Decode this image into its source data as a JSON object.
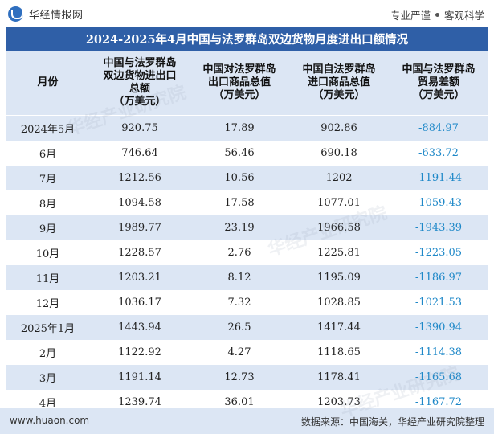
{
  "header": {
    "logo_text": "华经情报网",
    "slogan_left": "专业严谨",
    "slogan_right": "客观科学"
  },
  "title": "2024-2025年4月中国与法罗群岛双边货物月度进出口额情况",
  "columns": [
    "月份",
    "中国与法罗群岛\n双边货物进出口\n总额\n（万美元）",
    "中国对法罗群岛\n出口商品总值\n（万美元）",
    "中国自法罗群岛\n进口商品总值\n（万美元）",
    "中国与法罗群岛\n贸易差额\n（万美元）"
  ],
  "rows": [
    {
      "month": "2024年5月",
      "total": "920.75",
      "export": "17.89",
      "import": "902.86",
      "balance": "-884.97"
    },
    {
      "month": "6月",
      "total": "746.64",
      "export": "56.46",
      "import": "690.18",
      "balance": "-633.72"
    },
    {
      "month": "7月",
      "total": "1212.56",
      "export": "10.56",
      "import": "1202",
      "balance": "-1191.44"
    },
    {
      "month": "8月",
      "total": "1094.58",
      "export": "17.58",
      "import": "1077.01",
      "balance": "-1059.43"
    },
    {
      "month": "9月",
      "total": "1989.77",
      "export": "23.19",
      "import": "1966.58",
      "balance": "-1943.39"
    },
    {
      "month": "10月",
      "total": "1228.57",
      "export": "2.76",
      "import": "1225.81",
      "balance": "-1223.05"
    },
    {
      "month": "11月",
      "total": "1203.21",
      "export": "8.12",
      "import": "1195.09",
      "balance": "-1186.97"
    },
    {
      "month": "12月",
      "total": "1036.17",
      "export": "7.32",
      "import": "1028.85",
      "balance": "-1021.53"
    },
    {
      "month": "2025年1月",
      "total": "1443.94",
      "export": "26.5",
      "import": "1417.44",
      "balance": "-1390.94"
    },
    {
      "month": "2月",
      "total": "1122.92",
      "export": "4.27",
      "import": "1118.65",
      "balance": "-1114.38"
    },
    {
      "month": "3月",
      "total": "1191.14",
      "export": "12.73",
      "import": "1178.41",
      "balance": "-1165.68"
    },
    {
      "month": "4月",
      "total": "1239.74",
      "export": "36.01",
      "import": "1203.73",
      "balance": "-1167.72"
    }
  ],
  "footer": {
    "website": "www.huaon.com",
    "source": "数据来源：中国海关，华经产业研究院整理"
  },
  "watermarks": [
    "华经产业研究院",
    "华经产业研究院",
    "华经产业研究院"
  ],
  "colors": {
    "title_bg": "#2f5fa7",
    "stripe_bg": "#dce6f4",
    "negative_text": "#1e88c8"
  }
}
